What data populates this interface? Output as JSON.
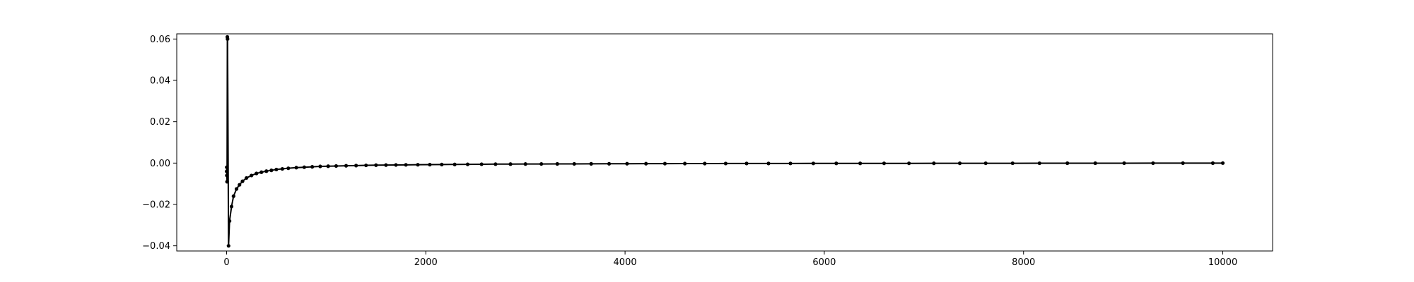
{
  "chart_data": {
    "type": "line",
    "title": "",
    "xlabel": "",
    "ylabel": "",
    "xlim": [
      -500,
      10500
    ],
    "ylim": [
      -0.0425,
      0.0625
    ],
    "grid": false,
    "line_color": "#000000",
    "marker": "circle",
    "x_ticks": [
      {
        "value": 0,
        "label": "0"
      },
      {
        "value": 2000,
        "label": "2000"
      },
      {
        "value": 4000,
        "label": "4000"
      },
      {
        "value": 6000,
        "label": "6000"
      },
      {
        "value": 8000,
        "label": "8000"
      },
      {
        "value": 10000,
        "label": "10000"
      }
    ],
    "y_ticks": [
      {
        "value": -0.04,
        "label": "−0.04"
      },
      {
        "value": -0.02,
        "label": "−0.02"
      },
      {
        "value": 0.0,
        "label": "0.00"
      },
      {
        "value": 0.02,
        "label": "0.02"
      },
      {
        "value": 0.04,
        "label": "0.04"
      },
      {
        "value": 0.06,
        "label": "0.06"
      }
    ],
    "series": [
      {
        "x": [
          1,
          2,
          3,
          5,
          8,
          10,
          20,
          30,
          50,
          70,
          100,
          130,
          160,
          200,
          250,
          300,
          350,
          400,
          450,
          500,
          560,
          620,
          700,
          780,
          860,
          940,
          1020,
          1100,
          1200,
          1300,
          1400,
          1500,
          1600,
          1700,
          1800,
          1920,
          2040,
          2160,
          2290,
          2420,
          2560,
          2700,
          2850,
          3000,
          3160,
          3320,
          3490,
          3660,
          3840,
          4020,
          4210,
          4400,
          4600,
          4800,
          5010,
          5220,
          5440,
          5660,
          5890,
          6120,
          6360,
          6600,
          6850,
          7100,
          7360,
          7620,
          7890,
          8160,
          8440,
          8720,
          9010,
          9300,
          9600,
          9900,
          10000
        ],
        "y": [
          -0.004,
          -0.002,
          -0.006,
          -0.009,
          0.061,
          0.06,
          -0.04,
          -0.028,
          -0.021,
          -0.016,
          -0.0125,
          -0.0105,
          -0.0088,
          -0.0072,
          -0.006,
          -0.005,
          -0.0044,
          -0.0039,
          -0.0035,
          -0.0031,
          -0.0028,
          -0.0025,
          -0.0022,
          -0.002,
          -0.0018,
          -0.0016,
          -0.0015,
          -0.0014,
          -0.0013,
          -0.0012,
          -0.0011,
          -0.001,
          -0.00095,
          -0.0009,
          -0.00085,
          -0.0008,
          -0.00075,
          -0.0007,
          -0.00065,
          -0.0006,
          -0.00055,
          -0.0005,
          -0.00048,
          -0.00045,
          -0.00042,
          -0.0004,
          -0.00038,
          -0.00035,
          -0.00033,
          -0.0003,
          -0.00028,
          -0.00026,
          -0.00024,
          -0.00022,
          -0.0002,
          -0.00019,
          -0.00018,
          -0.00017,
          -0.00016,
          -0.00015,
          -0.00014,
          -0.00013,
          -0.00012,
          -0.00011,
          -0.0001,
          -9e-05,
          -8e-05,
          -7e-05,
          -6e-05,
          -5e-05,
          -4e-05,
          -3e-05,
          -2e-05,
          -1e-05,
          0.0
        ]
      }
    ]
  }
}
